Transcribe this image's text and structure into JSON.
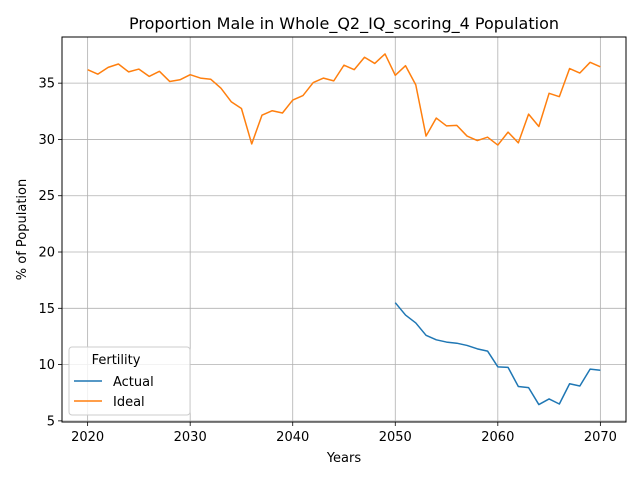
{
  "chart_data": {
    "type": "line",
    "title": "Proportion Male in Whole_Q2_IQ_scoring_4 Population",
    "xlabel": "Years",
    "ylabel": "% of Population",
    "xlim": [
      2017.5,
      2072.5
    ],
    "ylim": [
      4.9,
      39.1
    ],
    "xticks": [
      2020,
      2030,
      2040,
      2050,
      2060,
      2070
    ],
    "yticks": [
      5,
      10,
      15,
      20,
      25,
      30,
      35
    ],
    "grid": true,
    "legend": {
      "title": "Fertility",
      "position": "lower-left"
    },
    "series": [
      {
        "name": "Actual",
        "color": "#1f77b4",
        "x": [
          2050,
          2051,
          2052,
          2053,
          2054,
          2055,
          2056,
          2057,
          2058,
          2059,
          2060,
          2061,
          2062,
          2063,
          2064,
          2065,
          2066,
          2067,
          2068,
          2069,
          2070
        ],
        "y": [
          15.5,
          14.4,
          13.7,
          12.6,
          12.2,
          12.0,
          11.9,
          11.7,
          11.4,
          11.2,
          9.8,
          9.75,
          8.05,
          7.95,
          6.45,
          6.95,
          6.5,
          8.3,
          8.1,
          9.6,
          9.5
        ]
      },
      {
        "name": "Ideal",
        "color": "#ff7f0e",
        "x": [
          2020,
          2021,
          2022,
          2023,
          2024,
          2025,
          2026,
          2027,
          2028,
          2029,
          2030,
          2031,
          2032,
          2033,
          2034,
          2035,
          2036,
          2037,
          2038,
          2039,
          2040,
          2041,
          2042,
          2043,
          2044,
          2045,
          2046,
          2047,
          2048,
          2049,
          2050,
          2051,
          2052,
          2053,
          2054,
          2055,
          2056,
          2057,
          2058,
          2059,
          2060,
          2061,
          2062,
          2063,
          2064,
          2065,
          2066,
          2067,
          2068,
          2069,
          2070
        ],
        "y": [
          36.2,
          35.8,
          36.4,
          36.7,
          36.0,
          36.25,
          35.6,
          36.05,
          35.15,
          35.3,
          35.75,
          35.45,
          35.35,
          34.55,
          33.35,
          32.75,
          29.6,
          32.15,
          32.55,
          32.35,
          33.5,
          33.9,
          35.05,
          35.45,
          35.2,
          36.6,
          36.2,
          37.3,
          36.75,
          37.6,
          35.7,
          36.55,
          34.85,
          30.3,
          31.9,
          31.2,
          31.25,
          30.3,
          29.9,
          30.2,
          29.5,
          30.65,
          29.7,
          32.25,
          31.15,
          34.1,
          33.8,
          36.3,
          35.9,
          36.85,
          36.45
        ]
      }
    ]
  }
}
